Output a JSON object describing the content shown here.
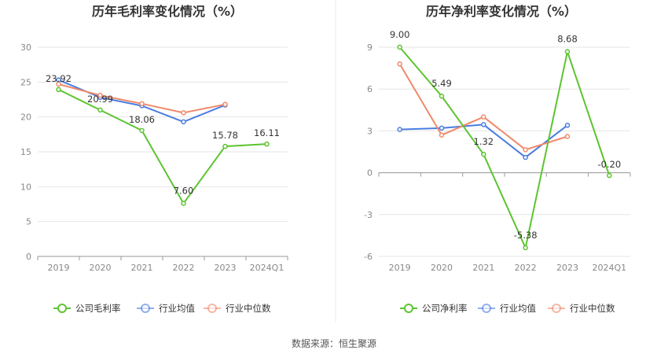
{
  "source_label": "数据来源：恒生聚源",
  "colors": {
    "company": "#5cc430",
    "industry_avg": "#4a7de0",
    "industry_median": "#f0896a",
    "grid": "#e6e6e6",
    "axis": "#999999",
    "tick_text": "#888888",
    "label_text": "#333333"
  },
  "chart_data": [
    {
      "type": "line",
      "title": "历年毛利率变化情况（%）",
      "categories": [
        "2019",
        "2020",
        "2021",
        "2022",
        "2023",
        "2024Q1"
      ],
      "ylim": [
        0,
        30
      ],
      "yticks": [
        0,
        5,
        10,
        15,
        20,
        25,
        30
      ],
      "grid": true,
      "legend_position": "bottom",
      "series": [
        {
          "name": "公司毛利率",
          "key": "company",
          "values": [
            23.92,
            20.99,
            18.06,
            7.6,
            15.78,
            16.11
          ],
          "labels": [
            "23.92",
            "20.99",
            "18.06",
            "7.60",
            "15.78",
            "16.11"
          ]
        },
        {
          "name": "行业均值",
          "key": "industry_avg",
          "values": [
            25.3,
            22.8,
            21.6,
            19.3,
            21.7,
            null
          ]
        },
        {
          "name": "行业中位数",
          "key": "industry_median",
          "values": [
            24.7,
            23.1,
            21.9,
            20.6,
            21.8,
            null
          ]
        }
      ]
    },
    {
      "type": "line",
      "title": "历年净利率变化情况（%）",
      "categories": [
        "2019",
        "2020",
        "2021",
        "2022",
        "2023",
        "2024Q1"
      ],
      "ylim": [
        -6,
        9
      ],
      "yticks": [
        -6,
        -3,
        0,
        3,
        6,
        9
      ],
      "grid": true,
      "legend_position": "bottom",
      "series": [
        {
          "name": "公司净利率",
          "key": "company",
          "values": [
            9.0,
            5.49,
            1.32,
            -5.38,
            8.68,
            -0.2
          ],
          "labels": [
            "9.00",
            "5.49",
            "1.32",
            "-5.38",
            "8.68",
            "-0.20"
          ]
        },
        {
          "name": "行业均值",
          "key": "industry_avg",
          "values": [
            3.1,
            3.2,
            3.45,
            1.1,
            3.4,
            null
          ]
        },
        {
          "name": "行业中位数",
          "key": "industry_median",
          "values": [
            7.8,
            2.7,
            4.0,
            1.65,
            2.6,
            null
          ]
        }
      ]
    }
  ]
}
